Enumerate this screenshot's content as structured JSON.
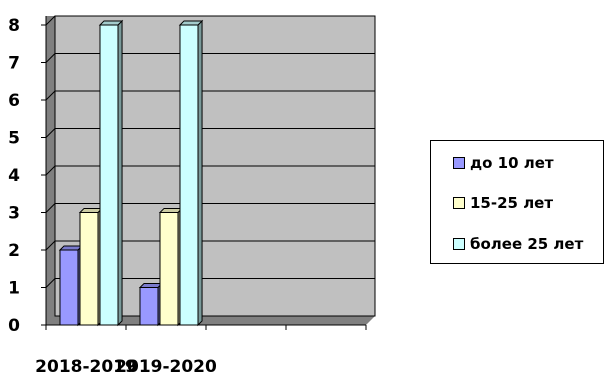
{
  "chart_data": {
    "type": "bar",
    "categories": [
      "2018-2019",
      "2019-2020",
      "",
      ""
    ],
    "series": [
      {
        "name": "до 10 лет",
        "values": [
          2,
          1,
          null,
          null
        ],
        "color": "#9999ff"
      },
      {
        "name": "15-25 лет",
        "values": [
          3,
          3,
          null,
          null
        ],
        "color": "#ffffcc"
      },
      {
        "name": "более 25 лет",
        "values": [
          8,
          8,
          null,
          null
        ],
        "color": "#ccffff"
      }
    ],
    "ylim": [
      0,
      8
    ],
    "yticks": [
      "0",
      "1",
      "2",
      "3",
      "4",
      "5",
      "6",
      "7",
      "8"
    ],
    "grid": true,
    "plot_background": "#c0c0c0",
    "style": "3d-column",
    "legend_position": "right"
  }
}
